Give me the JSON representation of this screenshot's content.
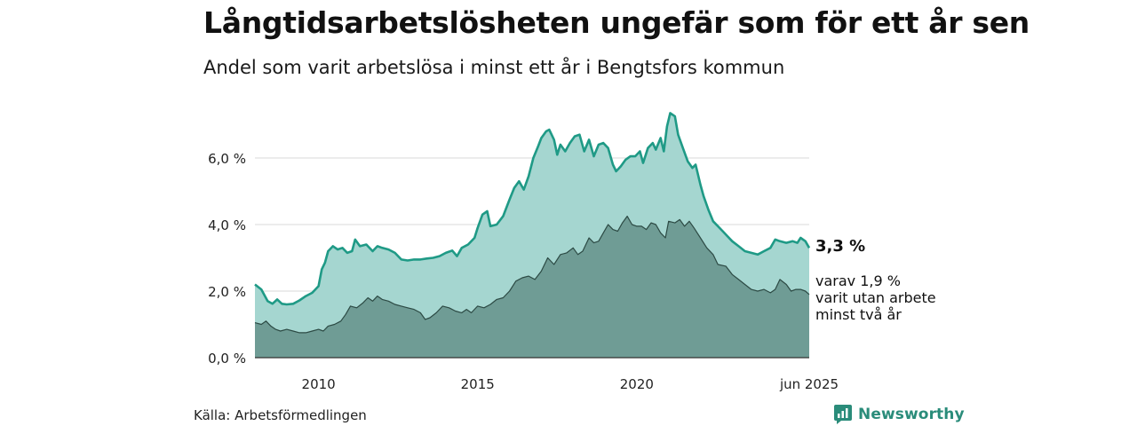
{
  "header": {
    "title": "Långtidsarbetslösheten ungefär som för ett år sen",
    "subtitle": "Andel som varit arbetslösa i minst ett år i Bengtsfors kommun"
  },
  "footer": {
    "source": "Källa: Arbetsförmedlingen",
    "brand": "Newsworthy"
  },
  "colors": {
    "total_line": "#1f9a86",
    "total_fill": "#a5d6d0",
    "long_line": "#2c4a44",
    "long_fill": "#6f9c95",
    "grid": "#d9d9d9",
    "brand": "#2a8c7a"
  },
  "chart_data": {
    "type": "area",
    "x_unit": "decimal year",
    "x_range": [
      2008.0,
      2025.42
    ],
    "ylim": [
      0,
      7.6
    ],
    "y_ticks": [
      {
        "value": 0,
        "label": "0,0 %"
      },
      {
        "value": 2,
        "label": "2,0 %"
      },
      {
        "value": 4,
        "label": "4,0 %"
      },
      {
        "value": 6,
        "label": "6,0 %"
      }
    ],
    "x_ticks": [
      {
        "value": 2010,
        "label": "2010"
      },
      {
        "value": 2015,
        "label": "2015"
      },
      {
        "value": 2020,
        "label": "2020"
      },
      {
        "value": 2025.42,
        "label": "jun 2025"
      }
    ],
    "grid": "horizontal",
    "series": [
      {
        "key": "total",
        "end_label": "3,3 %",
        "points": [
          [
            2008.0,
            2.2
          ],
          [
            2008.2,
            2.05
          ],
          [
            2008.4,
            1.7
          ],
          [
            2008.55,
            1.62
          ],
          [
            2008.7,
            1.75
          ],
          [
            2008.85,
            1.62
          ],
          [
            2009.0,
            1.6
          ],
          [
            2009.2,
            1.62
          ],
          [
            2009.4,
            1.72
          ],
          [
            2009.6,
            1.85
          ],
          [
            2009.8,
            1.95
          ],
          [
            2010.0,
            2.15
          ],
          [
            2010.1,
            2.65
          ],
          [
            2010.2,
            2.85
          ],
          [
            2010.3,
            3.2
          ],
          [
            2010.45,
            3.35
          ],
          [
            2010.6,
            3.25
          ],
          [
            2010.75,
            3.3
          ],
          [
            2010.9,
            3.15
          ],
          [
            2011.05,
            3.2
          ],
          [
            2011.15,
            3.55
          ],
          [
            2011.3,
            3.35
          ],
          [
            2011.5,
            3.4
          ],
          [
            2011.7,
            3.2
          ],
          [
            2011.85,
            3.35
          ],
          [
            2012.0,
            3.3
          ],
          [
            2012.2,
            3.25
          ],
          [
            2012.4,
            3.15
          ],
          [
            2012.6,
            2.95
          ],
          [
            2012.8,
            2.92
          ],
          [
            2013.0,
            2.95
          ],
          [
            2013.2,
            2.95
          ],
          [
            2013.4,
            2.98
          ],
          [
            2013.6,
            3.0
          ],
          [
            2013.8,
            3.05
          ],
          [
            2014.0,
            3.15
          ],
          [
            2014.2,
            3.22
          ],
          [
            2014.35,
            3.05
          ],
          [
            2014.5,
            3.3
          ],
          [
            2014.7,
            3.4
          ],
          [
            2014.9,
            3.6
          ],
          [
            2015.0,
            3.9
          ],
          [
            2015.15,
            4.3
          ],
          [
            2015.3,
            4.4
          ],
          [
            2015.4,
            3.95
          ],
          [
            2015.6,
            4.0
          ],
          [
            2015.8,
            4.25
          ],
          [
            2016.0,
            4.75
          ],
          [
            2016.15,
            5.1
          ],
          [
            2016.3,
            5.3
          ],
          [
            2016.45,
            5.05
          ],
          [
            2016.6,
            5.45
          ],
          [
            2016.75,
            6.0
          ],
          [
            2016.9,
            6.35
          ],
          [
            2017.0,
            6.6
          ],
          [
            2017.15,
            6.8
          ],
          [
            2017.25,
            6.85
          ],
          [
            2017.4,
            6.55
          ],
          [
            2017.5,
            6.1
          ],
          [
            2017.6,
            6.4
          ],
          [
            2017.75,
            6.2
          ],
          [
            2017.9,
            6.45
          ],
          [
            2018.05,
            6.65
          ],
          [
            2018.2,
            6.7
          ],
          [
            2018.35,
            6.2
          ],
          [
            2018.5,
            6.55
          ],
          [
            2018.65,
            6.05
          ],
          [
            2018.8,
            6.4
          ],
          [
            2018.95,
            6.45
          ],
          [
            2019.1,
            6.3
          ],
          [
            2019.25,
            5.8
          ],
          [
            2019.35,
            5.6
          ],
          [
            2019.5,
            5.75
          ],
          [
            2019.65,
            5.95
          ],
          [
            2019.8,
            6.05
          ],
          [
            2019.95,
            6.05
          ],
          [
            2020.1,
            6.2
          ],
          [
            2020.2,
            5.85
          ],
          [
            2020.35,
            6.3
          ],
          [
            2020.5,
            6.45
          ],
          [
            2020.6,
            6.25
          ],
          [
            2020.75,
            6.6
          ],
          [
            2020.85,
            6.2
          ],
          [
            2020.95,
            6.95
          ],
          [
            2021.05,
            7.35
          ],
          [
            2021.2,
            7.25
          ],
          [
            2021.3,
            6.7
          ],
          [
            2021.45,
            6.3
          ],
          [
            2021.6,
            5.9
          ],
          [
            2021.75,
            5.7
          ],
          [
            2021.85,
            5.8
          ],
          [
            2022.0,
            5.2
          ],
          [
            2022.1,
            4.85
          ],
          [
            2022.25,
            4.45
          ],
          [
            2022.4,
            4.1
          ],
          [
            2022.55,
            3.95
          ],
          [
            2022.7,
            3.8
          ],
          [
            2022.85,
            3.65
          ],
          [
            2023.0,
            3.5
          ],
          [
            2023.2,
            3.35
          ],
          [
            2023.4,
            3.2
          ],
          [
            2023.6,
            3.15
          ],
          [
            2023.8,
            3.1
          ],
          [
            2024.0,
            3.2
          ],
          [
            2024.2,
            3.3
          ],
          [
            2024.35,
            3.55
          ],
          [
            2024.5,
            3.5
          ],
          [
            2024.7,
            3.45
          ],
          [
            2024.9,
            3.5
          ],
          [
            2025.05,
            3.45
          ],
          [
            2025.15,
            3.6
          ],
          [
            2025.3,
            3.5
          ],
          [
            2025.42,
            3.3
          ]
        ]
      },
      {
        "key": "long",
        "end_label_lines": [
          "varav 1,9 %",
          "varit utan arbete",
          "minst två år"
        ],
        "points": [
          [
            2008.0,
            1.05
          ],
          [
            2008.2,
            1.0
          ],
          [
            2008.35,
            1.1
          ],
          [
            2008.5,
            0.95
          ],
          [
            2008.65,
            0.85
          ],
          [
            2008.8,
            0.8
          ],
          [
            2009.0,
            0.85
          ],
          [
            2009.2,
            0.8
          ],
          [
            2009.4,
            0.75
          ],
          [
            2009.6,
            0.75
          ],
          [
            2009.8,
            0.8
          ],
          [
            2010.0,
            0.85
          ],
          [
            2010.15,
            0.8
          ],
          [
            2010.3,
            0.95
          ],
          [
            2010.5,
            1.0
          ],
          [
            2010.7,
            1.1
          ],
          [
            2010.85,
            1.3
          ],
          [
            2011.0,
            1.55
          ],
          [
            2011.2,
            1.5
          ],
          [
            2011.4,
            1.65
          ],
          [
            2011.55,
            1.8
          ],
          [
            2011.7,
            1.7
          ],
          [
            2011.85,
            1.85
          ],
          [
            2012.0,
            1.75
          ],
          [
            2012.2,
            1.7
          ],
          [
            2012.4,
            1.6
          ],
          [
            2012.6,
            1.55
          ],
          [
            2012.8,
            1.5
          ],
          [
            2013.0,
            1.45
          ],
          [
            2013.2,
            1.35
          ],
          [
            2013.35,
            1.15
          ],
          [
            2013.5,
            1.2
          ],
          [
            2013.7,
            1.35
          ],
          [
            2013.9,
            1.55
          ],
          [
            2014.1,
            1.5
          ],
          [
            2014.3,
            1.4
          ],
          [
            2014.5,
            1.35
          ],
          [
            2014.65,
            1.45
          ],
          [
            2014.8,
            1.35
          ],
          [
            2015.0,
            1.55
          ],
          [
            2015.2,
            1.5
          ],
          [
            2015.4,
            1.6
          ],
          [
            2015.6,
            1.75
          ],
          [
            2015.8,
            1.8
          ],
          [
            2016.0,
            2.0
          ],
          [
            2016.2,
            2.3
          ],
          [
            2016.4,
            2.4
          ],
          [
            2016.6,
            2.45
          ],
          [
            2016.8,
            2.35
          ],
          [
            2017.0,
            2.6
          ],
          [
            2017.2,
            3.0
          ],
          [
            2017.4,
            2.8
          ],
          [
            2017.6,
            3.1
          ],
          [
            2017.8,
            3.15
          ],
          [
            2018.0,
            3.3
          ],
          [
            2018.15,
            3.1
          ],
          [
            2018.3,
            3.2
          ],
          [
            2018.5,
            3.6
          ],
          [
            2018.65,
            3.45
          ],
          [
            2018.8,
            3.5
          ],
          [
            2018.95,
            3.75
          ],
          [
            2019.1,
            4.0
          ],
          [
            2019.25,
            3.85
          ],
          [
            2019.4,
            3.8
          ],
          [
            2019.55,
            4.05
          ],
          [
            2019.7,
            4.25
          ],
          [
            2019.85,
            4.0
          ],
          [
            2020.0,
            3.95
          ],
          [
            2020.15,
            3.95
          ],
          [
            2020.3,
            3.85
          ],
          [
            2020.45,
            4.05
          ],
          [
            2020.6,
            4.0
          ],
          [
            2020.75,
            3.75
          ],
          [
            2020.9,
            3.6
          ],
          [
            2021.0,
            4.1
          ],
          [
            2021.2,
            4.05
          ],
          [
            2021.35,
            4.15
          ],
          [
            2021.5,
            3.95
          ],
          [
            2021.65,
            4.1
          ],
          [
            2021.8,
            3.9
          ],
          [
            2022.0,
            3.6
          ],
          [
            2022.2,
            3.3
          ],
          [
            2022.4,
            3.1
          ],
          [
            2022.55,
            2.8
          ],
          [
            2022.8,
            2.75
          ],
          [
            2023.0,
            2.5
          ],
          [
            2023.2,
            2.35
          ],
          [
            2023.4,
            2.2
          ],
          [
            2023.6,
            2.05
          ],
          [
            2023.8,
            2.0
          ],
          [
            2024.0,
            2.05
          ],
          [
            2024.2,
            1.95
          ],
          [
            2024.35,
            2.05
          ],
          [
            2024.5,
            2.35
          ],
          [
            2024.7,
            2.2
          ],
          [
            2024.85,
            2.0
          ],
          [
            2025.0,
            2.05
          ],
          [
            2025.15,
            2.05
          ],
          [
            2025.3,
            2.0
          ],
          [
            2025.42,
            1.9
          ]
        ]
      }
    ]
  }
}
